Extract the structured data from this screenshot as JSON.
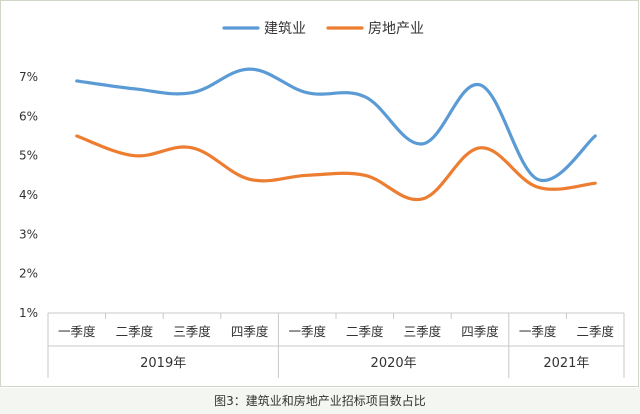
{
  "chart_data": {
    "type": "line",
    "title": "",
    "xlabel": "",
    "ylabel": "",
    "categories": [
      "一季度",
      "二季度",
      "三季度",
      "四季度",
      "一季度",
      "二季度",
      "三季度",
      "四季度",
      "一季度",
      "二季度"
    ],
    "groups": [
      {
        "label": "2019年",
        "start": 0,
        "end": 3
      },
      {
        "label": "2020年",
        "start": 4,
        "end": 7
      },
      {
        "label": "2021年",
        "start": 8,
        "end": 9
      }
    ],
    "series": [
      {
        "name": "建筑业",
        "color": "#5b9bd5",
        "values": [
          6.9,
          6.7,
          6.6,
          7.2,
          6.6,
          6.5,
          5.3,
          6.8,
          4.4,
          5.5
        ]
      },
      {
        "name": "房地产业",
        "color": "#ed7d31",
        "values": [
          5.5,
          5.0,
          5.2,
          4.4,
          4.5,
          4.5,
          3.9,
          5.2,
          4.2,
          4.3
        ]
      }
    ],
    "ylim": [
      1,
      7
    ],
    "yticks": [
      1,
      2,
      3,
      4,
      5,
      6,
      7
    ],
    "ytick_suffix": "%",
    "grid": false,
    "legend": "top-center"
  },
  "caption": "图3：建筑业和房地产业招标项目数占比"
}
